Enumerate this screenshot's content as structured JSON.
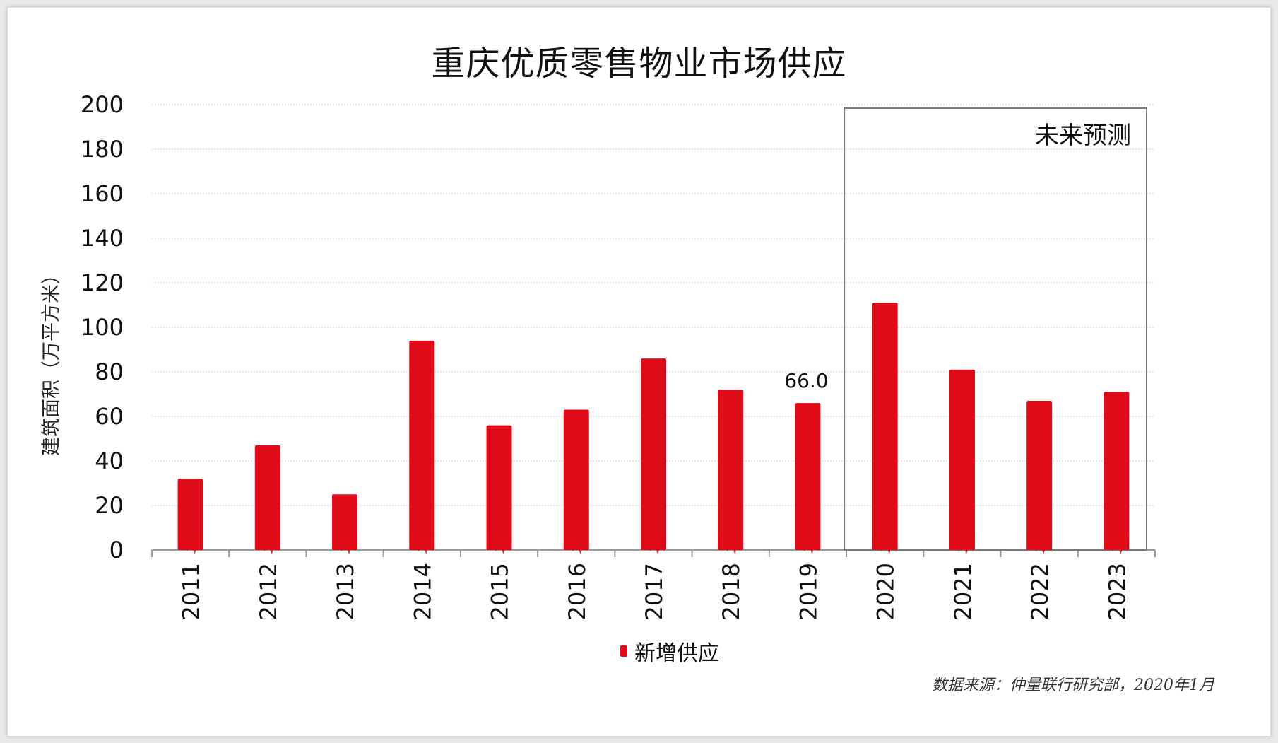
{
  "title": "重庆优质零售物业市场供应",
  "source": "数据来源：仲量联行研究部，2020年1月",
  "chart_data": {
    "type": "bar",
    "title": "重庆优质零售物业市场供应",
    "ylabel": "建筑面积（万平方米）",
    "xlabel": "",
    "ylim": [
      0,
      200
    ],
    "yticks": [
      0,
      20,
      40,
      60,
      80,
      100,
      120,
      140,
      160,
      180,
      200
    ],
    "grid": true,
    "categories": [
      "2011",
      "2012",
      "2013",
      "2014",
      "2015",
      "2016",
      "2017",
      "2018",
      "2019",
      "2020",
      "2021",
      "2022",
      "2023"
    ],
    "series": [
      {
        "name": "新增供应",
        "color": "#e00b18",
        "values": [
          32,
          47,
          25,
          94,
          56,
          63,
          86,
          72,
          66.0,
          111,
          81,
          67,
          71
        ]
      }
    ],
    "data_labels": [
      {
        "category": "2019",
        "text": "66.0"
      }
    ],
    "forecast": {
      "label": "未来预测",
      "from": "2020",
      "to": "2023"
    },
    "legend": {
      "position": "bottom-center",
      "entries": [
        "新增供应"
      ]
    }
  }
}
